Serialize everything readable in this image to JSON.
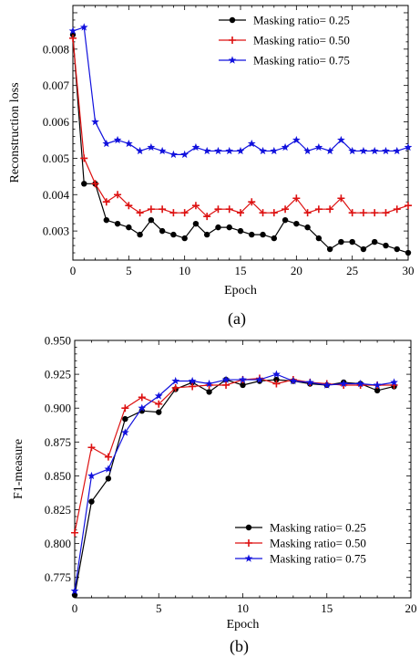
{
  "chart_data": [
    {
      "type": "line",
      "panel_label": "(a)",
      "xlabel": "Epoch",
      "ylabel": "Reconstruction loss",
      "xlim": [
        0,
        30
      ],
      "ylim": [
        0.0022,
        0.0092
      ],
      "xticks": [
        0,
        5,
        10,
        15,
        20,
        25,
        30
      ],
      "xtick_labels": [
        "0",
        "5",
        "10",
        "15",
        "20",
        "25",
        "30"
      ],
      "yticks": [
        0.003,
        0.004,
        0.005,
        0.006,
        0.007,
        0.008
      ],
      "ytick_labels": [
        "0.003",
        "0.004",
        "0.005",
        "0.006",
        "0.007",
        "0.008"
      ],
      "grid": false,
      "legend_position": "top-right",
      "x": [
        0,
        1,
        2,
        3,
        4,
        5,
        6,
        7,
        8,
        9,
        10,
        11,
        12,
        13,
        14,
        15,
        16,
        17,
        18,
        19,
        20,
        21,
        22,
        23,
        24,
        25,
        26,
        27,
        28,
        29,
        30
      ],
      "series": [
        {
          "name": "Masking ratio= 0.25",
          "color": "#000000",
          "marker": "circle",
          "values": [
            0.0084,
            0.0043,
            0.0043,
            0.0033,
            0.0032,
            0.0031,
            0.0029,
            0.0033,
            0.003,
            0.0029,
            0.0028,
            0.0032,
            0.0029,
            0.0031,
            0.0031,
            0.003,
            0.0029,
            0.0029,
            0.0028,
            0.0033,
            0.0032,
            0.0031,
            0.0028,
            0.0025,
            0.0027,
            0.0027,
            0.0025,
            0.0027,
            0.0026,
            0.0025,
            0.0024
          ]
        },
        {
          "name": "Masking ratio= 0.50",
          "color": "#dd1111",
          "marker": "plus",
          "values": [
            0.0083,
            0.005,
            0.0043,
            0.0038,
            0.004,
            0.0037,
            0.0035,
            0.0036,
            0.0036,
            0.0035,
            0.0035,
            0.0037,
            0.0034,
            0.0036,
            0.0036,
            0.0035,
            0.0038,
            0.0035,
            0.0035,
            0.0036,
            0.0039,
            0.0035,
            0.0036,
            0.0036,
            0.0039,
            0.0035,
            0.0035,
            0.0035,
            0.0035,
            0.0036,
            0.0037
          ]
        },
        {
          "name": "Masking ratio= 0.75",
          "color": "#1111dd",
          "marker": "star",
          "values": [
            0.0085,
            0.0086,
            0.006,
            0.0054,
            0.0055,
            0.0054,
            0.0052,
            0.0053,
            0.0052,
            0.0051,
            0.0051,
            0.0053,
            0.0052,
            0.0052,
            0.0052,
            0.0052,
            0.0054,
            0.0052,
            0.0052,
            0.0053,
            0.0055,
            0.0052,
            0.0053,
            0.0052,
            0.0055,
            0.0052,
            0.0052,
            0.0052,
            0.0052,
            0.0052,
            0.0053
          ]
        }
      ]
    },
    {
      "type": "line",
      "panel_label": "(b)",
      "xlabel": "Epoch",
      "ylabel": "F1-measure",
      "xlim": [
        0,
        20
      ],
      "ylim": [
        0.76,
        0.95
      ],
      "xticks": [
        0,
        5,
        10,
        15,
        20
      ],
      "xtick_labels": [
        "0",
        "5",
        "10",
        "15",
        "20"
      ],
      "yticks": [
        0.775,
        0.8,
        0.825,
        0.85,
        0.875,
        0.9,
        0.925,
        0.95
      ],
      "ytick_labels": [
        "0.775",
        "0.800",
        "0.825",
        "0.850",
        "0.875",
        "0.900",
        "0.925",
        "0.950"
      ],
      "grid": false,
      "legend_position": "bottom-right",
      "x": [
        0,
        1,
        2,
        3,
        4,
        5,
        6,
        7,
        8,
        9,
        10,
        11,
        12,
        13,
        14,
        15,
        16,
        17,
        18,
        19
      ],
      "series": [
        {
          "name": "Masking ratio= 0.25",
          "color": "#000000",
          "marker": "circle",
          "values": [
            0.762,
            0.831,
            0.848,
            0.892,
            0.898,
            0.897,
            0.914,
            0.919,
            0.912,
            0.921,
            0.917,
            0.92,
            0.921,
            0.92,
            0.918,
            0.917,
            0.919,
            0.918,
            0.913,
            0.916
          ]
        },
        {
          "name": "Masking ratio= 0.50",
          "color": "#dd1111",
          "marker": "plus",
          "values": [
            0.808,
            0.871,
            0.864,
            0.9,
            0.908,
            0.903,
            0.915,
            0.916,
            0.917,
            0.917,
            0.921,
            0.922,
            0.918,
            0.921,
            0.919,
            0.918,
            0.917,
            0.917,
            0.917,
            0.917
          ]
        },
        {
          "name": "Masking ratio= 0.75",
          "color": "#1111dd",
          "marker": "star",
          "values": [
            0.765,
            0.85,
            0.855,
            0.882,
            0.9,
            0.909,
            0.92,
            0.92,
            0.918,
            0.921,
            0.921,
            0.921,
            0.925,
            0.92,
            0.919,
            0.917,
            0.918,
            0.918,
            0.917,
            0.919
          ]
        }
      ]
    }
  ]
}
